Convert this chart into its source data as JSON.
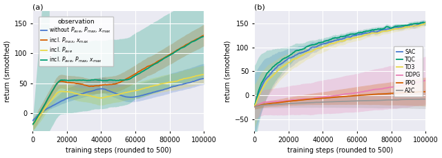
{
  "fig_width": 6.4,
  "fig_height": 2.29,
  "dpi": 100,
  "x_ticks": [
    0,
    20000,
    40000,
    60000,
    80000,
    100000
  ],
  "x_ticklabels": [
    "0",
    "20000",
    "40000",
    "60000",
    "80000",
    "100000"
  ],
  "xlabel": "training steps (rounded to 500)",
  "panel_a": {
    "title": "(a)",
    "ylabel": "return (smoothed)",
    "ylim": [
      -30,
      170
    ],
    "yticks": [
      0,
      50,
      100,
      150
    ],
    "legend_title": "observation",
    "series": [
      {
        "label": "without $P_{ave}$, $P_{max}$, $x_{max}$",
        "color": "#4878cf"
      },
      {
        "label": "incl. $P_{max}$, $x_{max}$",
        "color": "#d55e00"
      },
      {
        "label": "incl. $P_{ave}$",
        "color": "#e8d84a"
      },
      {
        "label": "incl. $P_{ave}$, $P_{max}$, $x_{max}$",
        "color": "#009E73"
      }
    ]
  },
  "panel_b": {
    "title": "(b)",
    "ylabel": "return (smoothed)",
    "ylim": [
      -75,
      175
    ],
    "yticks": [
      -50,
      0,
      50,
      100,
      150
    ],
    "series": [
      {
        "label": "SAC",
        "color": "#4878cf"
      },
      {
        "label": "TQC",
        "color": "#009E73"
      },
      {
        "label": "TD3",
        "color": "#e8d84a"
      },
      {
        "label": "DDPG",
        "color": "#e87db5"
      },
      {
        "label": "PPO",
        "color": "#d55e00"
      },
      {
        "label": "A2C",
        "color": "#999999"
      }
    ]
  },
  "bg_color": "#eaeaf2",
  "grid_color": "white",
  "font_size": 7.0
}
